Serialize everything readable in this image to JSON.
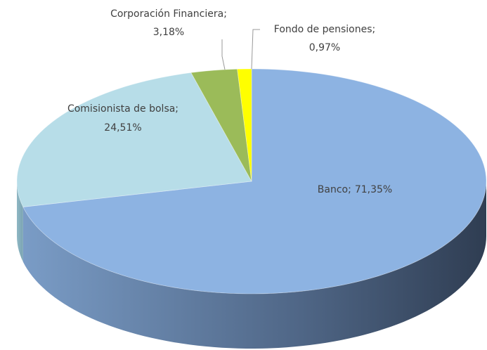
{
  "chart_data": {
    "type": "pie3d",
    "categories": [
      "Banco;",
      "Comisionista de bolsa;",
      "Corporación Financiera;",
      "Fondo de pensiones;"
    ],
    "values": [
      71.35,
      24.51,
      3.18,
      0.97
    ],
    "value_labels": [
      "71,35%",
      "24,51%",
      "3,18%",
      "0,97%"
    ],
    "colors": [
      "#8db3e2",
      "#b7dde8",
      "#9bbb59",
      "#ffff00"
    ]
  }
}
